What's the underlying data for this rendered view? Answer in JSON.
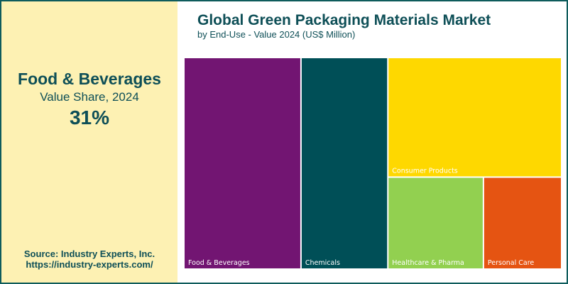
{
  "highlight": {
    "category": "Food & Beverages",
    "label": "Value Share, 2024",
    "value": "31%"
  },
  "source": {
    "line1": "Source: Industry Experts, Inc.",
    "line2": "https://industry-experts.com/"
  },
  "colors": {
    "frame": "#0e5c5c",
    "panel": "#fdf1b3",
    "text": "#0e4f57"
  },
  "chart_data": {
    "type": "treemap",
    "title": "Global Green Packaging Materials Market",
    "subtitle": "by End-Use - Value 2024 (US$ Million)",
    "value_unit": "US$ Million",
    "share_unit": "% of total",
    "categories": [
      "Food & Beverages",
      "Chemicals",
      "Consumer Products",
      "Healthcare & Pharma",
      "Personal Care"
    ],
    "values": [
      31,
      23,
      26,
      11,
      9
    ],
    "colors": [
      "#721572",
      "#004f57",
      "#fed800",
      "#92d050",
      "#e55412"
    ]
  }
}
